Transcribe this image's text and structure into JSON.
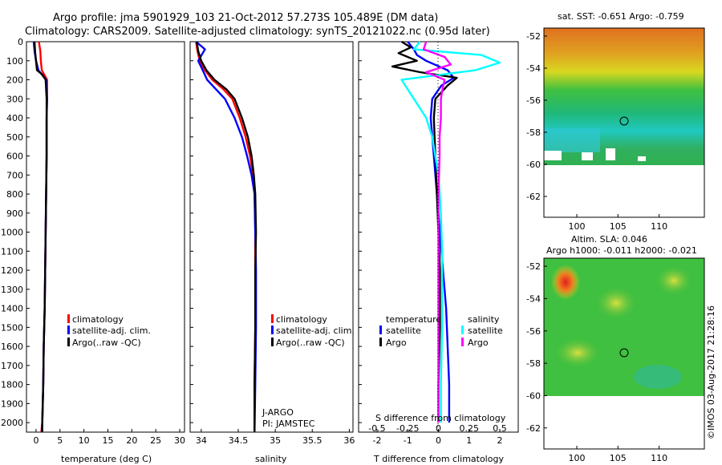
{
  "header": {
    "line1": "Argo profile: jma 5901929_103 21-Oct-2012 57.273S 105.489E (DM data)",
    "line2": "Climatology: CARS2009. Satellite-adjusted climatology: synTS_20121022.nc (0.95d later)"
  },
  "colors": {
    "climatology": "#ff0000",
    "satellite": "#0000ff",
    "argo": "#000000",
    "satellite_salinity": "#00ffff",
    "argo_salinity": "#ff00ff"
  },
  "depth_ticks": [
    "0",
    "100",
    "200",
    "300",
    "400",
    "500",
    "600",
    "700",
    "800",
    "900",
    "1000",
    "1100",
    "1200",
    "1300",
    "1400",
    "1500",
    "1600",
    "1700",
    "1800",
    "1900",
    "2000"
  ],
  "temp_panel": {
    "xlabel": "temperature (deg C)",
    "xticks": [
      "0",
      "5",
      "10",
      "15",
      "20",
      "25",
      "30"
    ],
    "legend": [
      "climatology",
      "satellite-adj. clim.",
      "Argo(..raw -QC)"
    ]
  },
  "sal_panel": {
    "xlabel": "salinity",
    "xticks": [
      "34",
      "34.5",
      "35",
      "35.5",
      "36"
    ],
    "legend": [
      "climatology",
      "satellite-adj. clim.",
      "Argo(..raw -QC)"
    ],
    "note1": "J-ARGO",
    "note2": "PI: JAMSTEC"
  },
  "diff_panel": {
    "xlabel": "T difference from climatology",
    "xticks": [
      "-2",
      "-1",
      "0",
      "1",
      "2"
    ],
    "top_xlabel": "S difference from climatology",
    "top_xticks": [
      "-0.5",
      "-0.25",
      "0",
      "0.25",
      "0.5"
    ],
    "legend_t_title": "temperature",
    "legend_s_title": "salinity",
    "legend_t": [
      "satellite",
      "Argo"
    ],
    "legend_s": [
      "satellite",
      "Argo"
    ]
  },
  "map1": {
    "title": "sat. SST: -0.651  Argo: -0.759",
    "yticks": [
      "-52",
      "-54",
      "-56",
      "-58",
      "-60",
      "-62"
    ],
    "xticks": [
      "100",
      "105",
      "110"
    ]
  },
  "map2": {
    "title1": "Altim. SLA: 0.046",
    "title2": "Argo h1000: -0.011 h2000: -0.021",
    "yticks": [
      "-52",
      "-54",
      "-56",
      "-58",
      "-60",
      "-62"
    ],
    "xticks": [
      "100",
      "105",
      "110"
    ]
  },
  "stamp": "©IMOS 03-Aug-2017 21:28:16",
  "chart_data": [
    {
      "type": "line",
      "title": "",
      "xlabel": "temperature (deg C)",
      "ylabel": "",
      "xlim": [
        -2,
        31
      ],
      "ylim": [
        2050,
        0
      ],
      "series": [
        {
          "name": "climatology",
          "color": "#ff0000",
          "x": [
            0.6,
            0.9,
            1.0,
            1.2,
            2.3,
            2.3,
            2.2,
            2.2,
            2.1,
            2.0,
            1.9,
            1.8,
            1.6,
            1.5,
            1.3,
            1.1
          ],
          "y": [
            0,
            50,
            100,
            150,
            200,
            300,
            400,
            600,
            800,
            1000,
            1200,
            1400,
            1600,
            1800,
            2000,
            2050
          ]
        },
        {
          "name": "satellite-adj. clim.",
          "color": "#0000ff",
          "x": [
            -0.5,
            -0.3,
            0.0,
            0.5,
            2.1,
            2.3,
            2.2,
            2.2,
            2.1,
            2.0,
            1.9,
            1.8,
            1.6,
            1.5,
            1.3,
            1.2
          ],
          "y": [
            0,
            50,
            100,
            150,
            200,
            300,
            400,
            600,
            800,
            1000,
            1200,
            1400,
            1600,
            1800,
            2000,
            2050
          ]
        },
        {
          "name": "Argo(..raw -QC)",
          "color": "#000000",
          "x": [
            -0.3,
            -0.2,
            0.0,
            0.2,
            1.2,
            2.0,
            2.2,
            2.2,
            2.1,
            2.0,
            1.9,
            1.8,
            1.6,
            1.5,
            1.3,
            1.3
          ],
          "y": [
            0,
            50,
            100,
            150,
            170,
            200,
            300,
            600,
            800,
            1000,
            1200,
            1400,
            1600,
            1800,
            2000,
            2050
          ]
        }
      ]
    },
    {
      "type": "line",
      "title": "",
      "xlabel": "salinity",
      "ylabel": "",
      "xlim": [
        33.85,
        36.05
      ],
      "ylim": [
        2050,
        0
      ],
      "series": [
        {
          "name": "climatology",
          "color": "#ff0000",
          "x": [
            33.93,
            33.95,
            33.98,
            34.05,
            34.15,
            34.3,
            34.42,
            34.52,
            34.6,
            34.66,
            34.7,
            34.72,
            34.73,
            34.73,
            34.73,
            34.72,
            34.72
          ],
          "y": [
            0,
            50,
            100,
            150,
            200,
            250,
            300,
            400,
            500,
            600,
            700,
            800,
            1000,
            1200,
            1500,
            1800,
            2050
          ]
        },
        {
          "name": "satellite-adj. clim.",
          "color": "#0000ff",
          "x": [
            33.93,
            34.05,
            33.96,
            34.02,
            34.08,
            34.2,
            34.32,
            34.45,
            34.55,
            34.62,
            34.68,
            34.72,
            34.73,
            34.74,
            34.74,
            34.73,
            34.72
          ],
          "y": [
            0,
            40,
            100,
            150,
            200,
            250,
            300,
            400,
            500,
            600,
            700,
            800,
            1000,
            1200,
            1500,
            1800,
            2050
          ]
        },
        {
          "name": "Argo(..raw -QC)",
          "color": "#000000",
          "x": [
            33.94,
            33.96,
            34.0,
            34.07,
            34.18,
            34.34,
            34.45,
            34.55,
            34.63,
            34.68,
            34.71,
            34.73,
            34.74,
            34.73,
            34.73,
            34.72,
            34.72
          ],
          "y": [
            0,
            50,
            100,
            150,
            200,
            250,
            300,
            400,
            500,
            600,
            700,
            800,
            1000,
            1200,
            1500,
            1800,
            2050
          ]
        }
      ]
    },
    {
      "type": "line",
      "title": "",
      "xlabel": "T difference from climatology",
      "top_xlabel": "S difference from climatology",
      "ylabel": "",
      "xlim": [
        -2.6,
        2.6
      ],
      "ylim": [
        2050,
        0
      ],
      "series": [
        {
          "name": "satellite",
          "kind": "temperature",
          "color": "#0000ff",
          "x": [
            -1.0,
            -0.8,
            -0.7,
            -0.4,
            0.3,
            0.5,
            0.1,
            -0.2,
            -0.25,
            -0.15,
            -0.05,
            0.05,
            0.15,
            0.25,
            0.3,
            0.35,
            0.35
          ],
          "y": [
            0,
            40,
            70,
            100,
            150,
            190,
            230,
            300,
            400,
            600,
            800,
            1000,
            1200,
            1400,
            1600,
            1800,
            2000
          ]
        },
        {
          "name": "Argo",
          "kind": "temperature",
          "color": "#000000",
          "x": [
            -1.2,
            -0.9,
            -1.3,
            -0.7,
            -1.5,
            -0.6,
            0.6,
            0.3,
            -0.1,
            -0.15,
            -0.1,
            -0.05,
            0.0,
            0.05,
            0.05,
            0.0,
            0.0
          ],
          "y": [
            0,
            30,
            60,
            100,
            130,
            160,
            190,
            230,
            300,
            400,
            600,
            800,
            1000,
            1200,
            1500,
            1800,
            2000
          ]
        },
        {
          "name": "satellite",
          "kind": "salinity",
          "color": "#00ffff",
          "x": [
            -0.15,
            -0.2,
            0.35,
            0.5,
            0.3,
            -0.3,
            -0.25,
            -0.2,
            -0.1,
            -0.05,
            0.0,
            0.02,
            0.03,
            0.03,
            0.03,
            0.02,
            0.02
          ],
          "y": [
            0,
            40,
            70,
            110,
            150,
            200,
            250,
            300,
            400,
            500,
            700,
            900,
            1100,
            1300,
            1500,
            1800,
            2000
          ]
        },
        {
          "name": "Argo",
          "kind": "salinity",
          "color": "#ff00ff",
          "x": [
            -0.1,
            -0.12,
            0.05,
            0.1,
            -0.1,
            0.05,
            0.03,
            0.02,
            0.02,
            0.01,
            0.01,
            0.0,
            0.0,
            0.0,
            0.0,
            0.0,
            0.0
          ],
          "y": [
            0,
            40,
            80,
            120,
            160,
            200,
            260,
            300,
            400,
            500,
            600,
            800,
            1000,
            1200,
            1500,
            1800,
            2000
          ]
        }
      ]
    }
  ]
}
